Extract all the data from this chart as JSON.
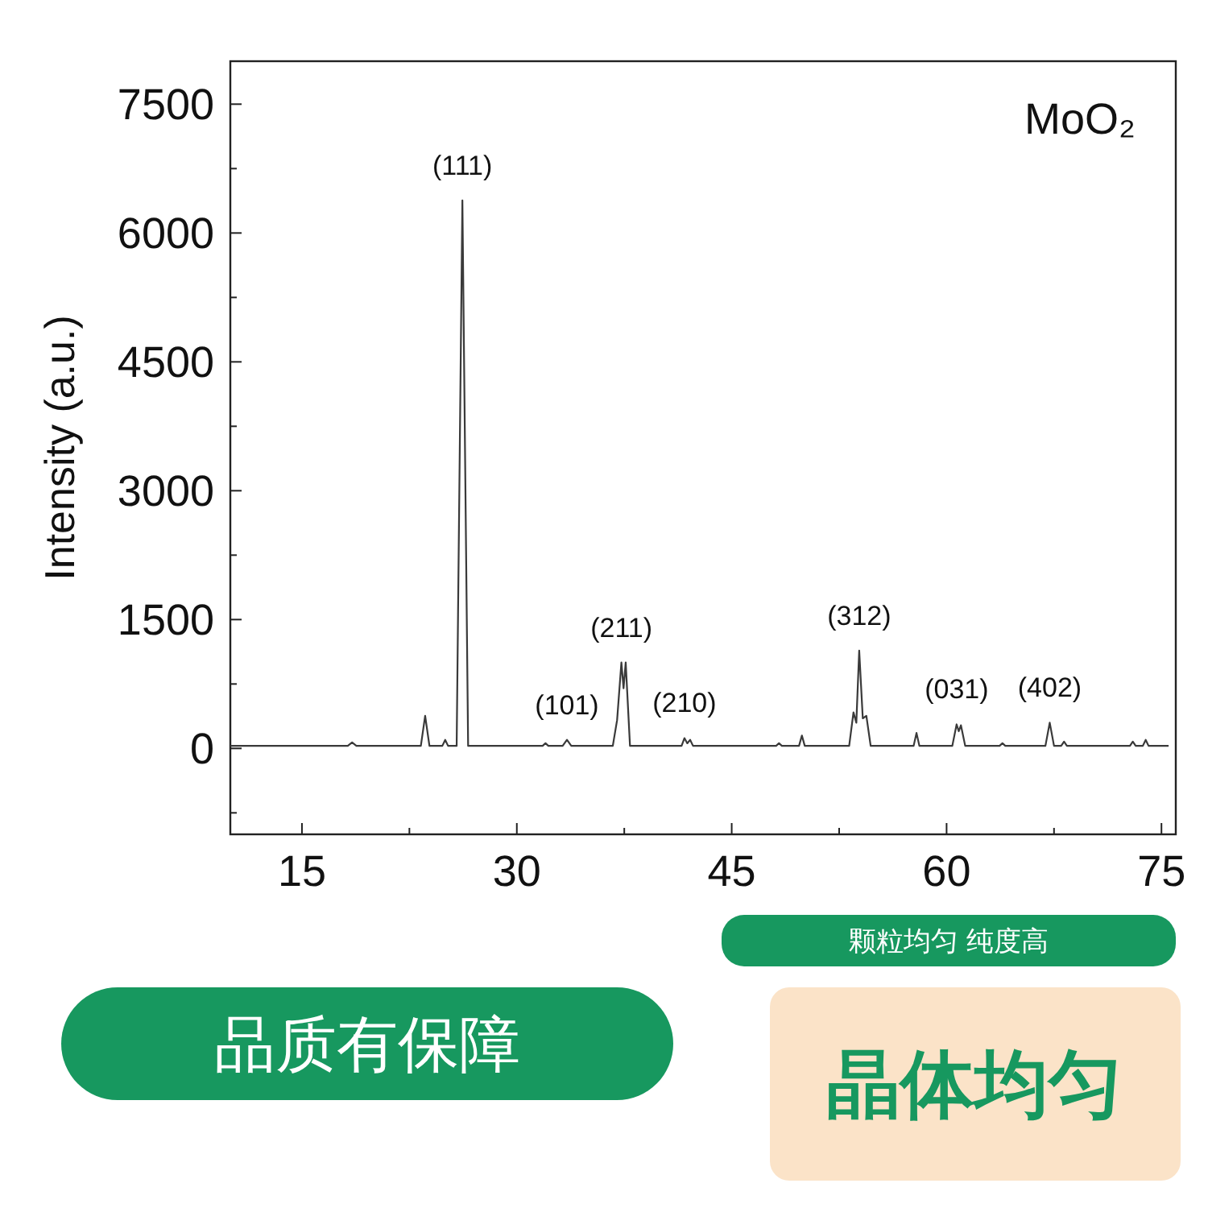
{
  "chart_data": {
    "type": "line",
    "ylabel": "Intensity (a.u.)",
    "x": [
      10,
      18.2,
      18.5,
      18.8,
      23.3,
      23.6,
      23.9,
      24.8,
      25,
      25.2,
      25.8,
      26.2,
      26.6,
      31.8,
      32,
      32.2,
      33.2,
      33.5,
      33.8,
      36.7,
      37,
      37.3,
      37.45,
      37.6,
      37.9,
      41.5,
      41.7,
      41.9,
      42.1,
      42.3,
      48.1,
      48.3,
      48.5,
      49.7,
      49.9,
      50.1,
      53.2,
      53.5,
      53.7,
      53.9,
      54.15,
      54.4,
      54.7,
      57.7,
      57.9,
      58.1,
      60.4,
      60.7,
      60.85,
      61,
      61.3,
      63.7,
      63.9,
      64.1,
      66.9,
      67.2,
      67.5,
      68,
      68.2,
      68.4,
      72.8,
      73,
      73.2,
      73.7,
      73.9,
      74.1,
      75.5
    ],
    "series": [
      {
        "color": "#3a3a3a",
        "values": [
          30,
          30,
          70,
          30,
          30,
          380,
          30,
          30,
          100,
          30,
          30,
          6380,
          30,
          30,
          60,
          30,
          30,
          100,
          30,
          30,
          330,
          1000,
          700,
          1000,
          30,
          30,
          120,
          60,
          100,
          30,
          30,
          60,
          30,
          30,
          150,
          30,
          30,
          420,
          300,
          1140,
          350,
          380,
          30,
          30,
          180,
          30,
          30,
          280,
          200,
          270,
          30,
          30,
          60,
          30,
          30,
          300,
          30,
          30,
          80,
          30,
          30,
          80,
          30,
          30,
          100,
          30,
          30
        ]
      }
    ],
    "xlim": [
      10,
      76
    ],
    "xticks": [
      15,
      {
        "value": 22.5,
        "label": null
      },
      30,
      {
        "value": 37.5,
        "label": null
      },
      45,
      {
        "value": 52.5,
        "label": null
      },
      60,
      {
        "value": 67.5,
        "label": null
      },
      75
    ],
    "ylim": [
      -1000,
      8000
    ],
    "yticks": [
      {
        "value": -750,
        "label": null
      },
      0,
      {
        "value": 750,
        "label": null
      },
      1500,
      {
        "value": 2250,
        "label": null
      },
      3000,
      {
        "value": 3750,
        "label": null
      },
      4500,
      {
        "value": 5250,
        "label": null
      },
      6000,
      {
        "value": 6750,
        "label": null
      },
      7500
    ],
    "grid": false,
    "marker": "none",
    "line_style": "solid",
    "annotations": [
      {
        "text": "(111)",
        "x": 26.2,
        "y": 6380
      },
      {
        "text": "(101)",
        "x": 33.5,
        "y": 100
      },
      {
        "text": "(211)",
        "x": 37.3,
        "y": 1000
      },
      {
        "text": "(210)",
        "x": 41.7,
        "y": 120
      },
      {
        "text": "(312)",
        "x": 53.9,
        "y": 1140
      },
      {
        "text": "(031)",
        "x": 60.7,
        "y": 280
      },
      {
        "text": "(402)",
        "x": 67.2,
        "y": 300
      },
      "MoO₂",
      "颗粒均匀 纯度高",
      "品质有保障",
      "晶体均匀"
    ]
  }
}
